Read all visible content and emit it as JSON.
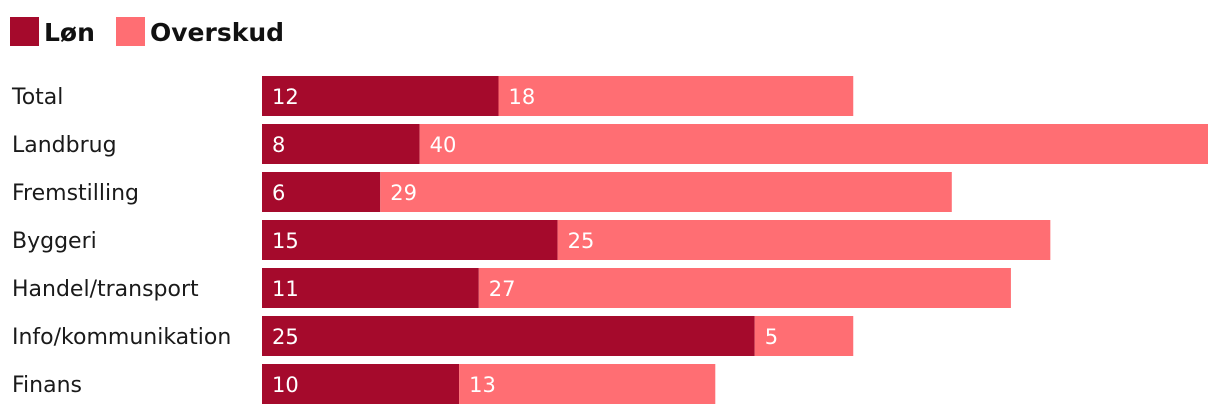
{
  "chart_data": {
    "type": "bar",
    "orientation": "horizontal",
    "stacked": true,
    "categories": [
      "Total",
      "Landbrug",
      "Fremstilling",
      "Byggeri",
      "Handel/transport",
      "Info/kommunikation",
      "Finans"
    ],
    "series": [
      {
        "name": "Løn",
        "color": "#a50a2c",
        "values": [
          12,
          8,
          6,
          15,
          11,
          25,
          10
        ]
      },
      {
        "name": "Overskud",
        "color": "#ff6e73",
        "values": [
          18,
          40,
          29,
          25,
          27,
          5,
          13
        ]
      }
    ],
    "xlim": [
      0,
      48
    ],
    "legend": "top-left",
    "grid": false,
    "data_labels": "inside-left"
  }
}
